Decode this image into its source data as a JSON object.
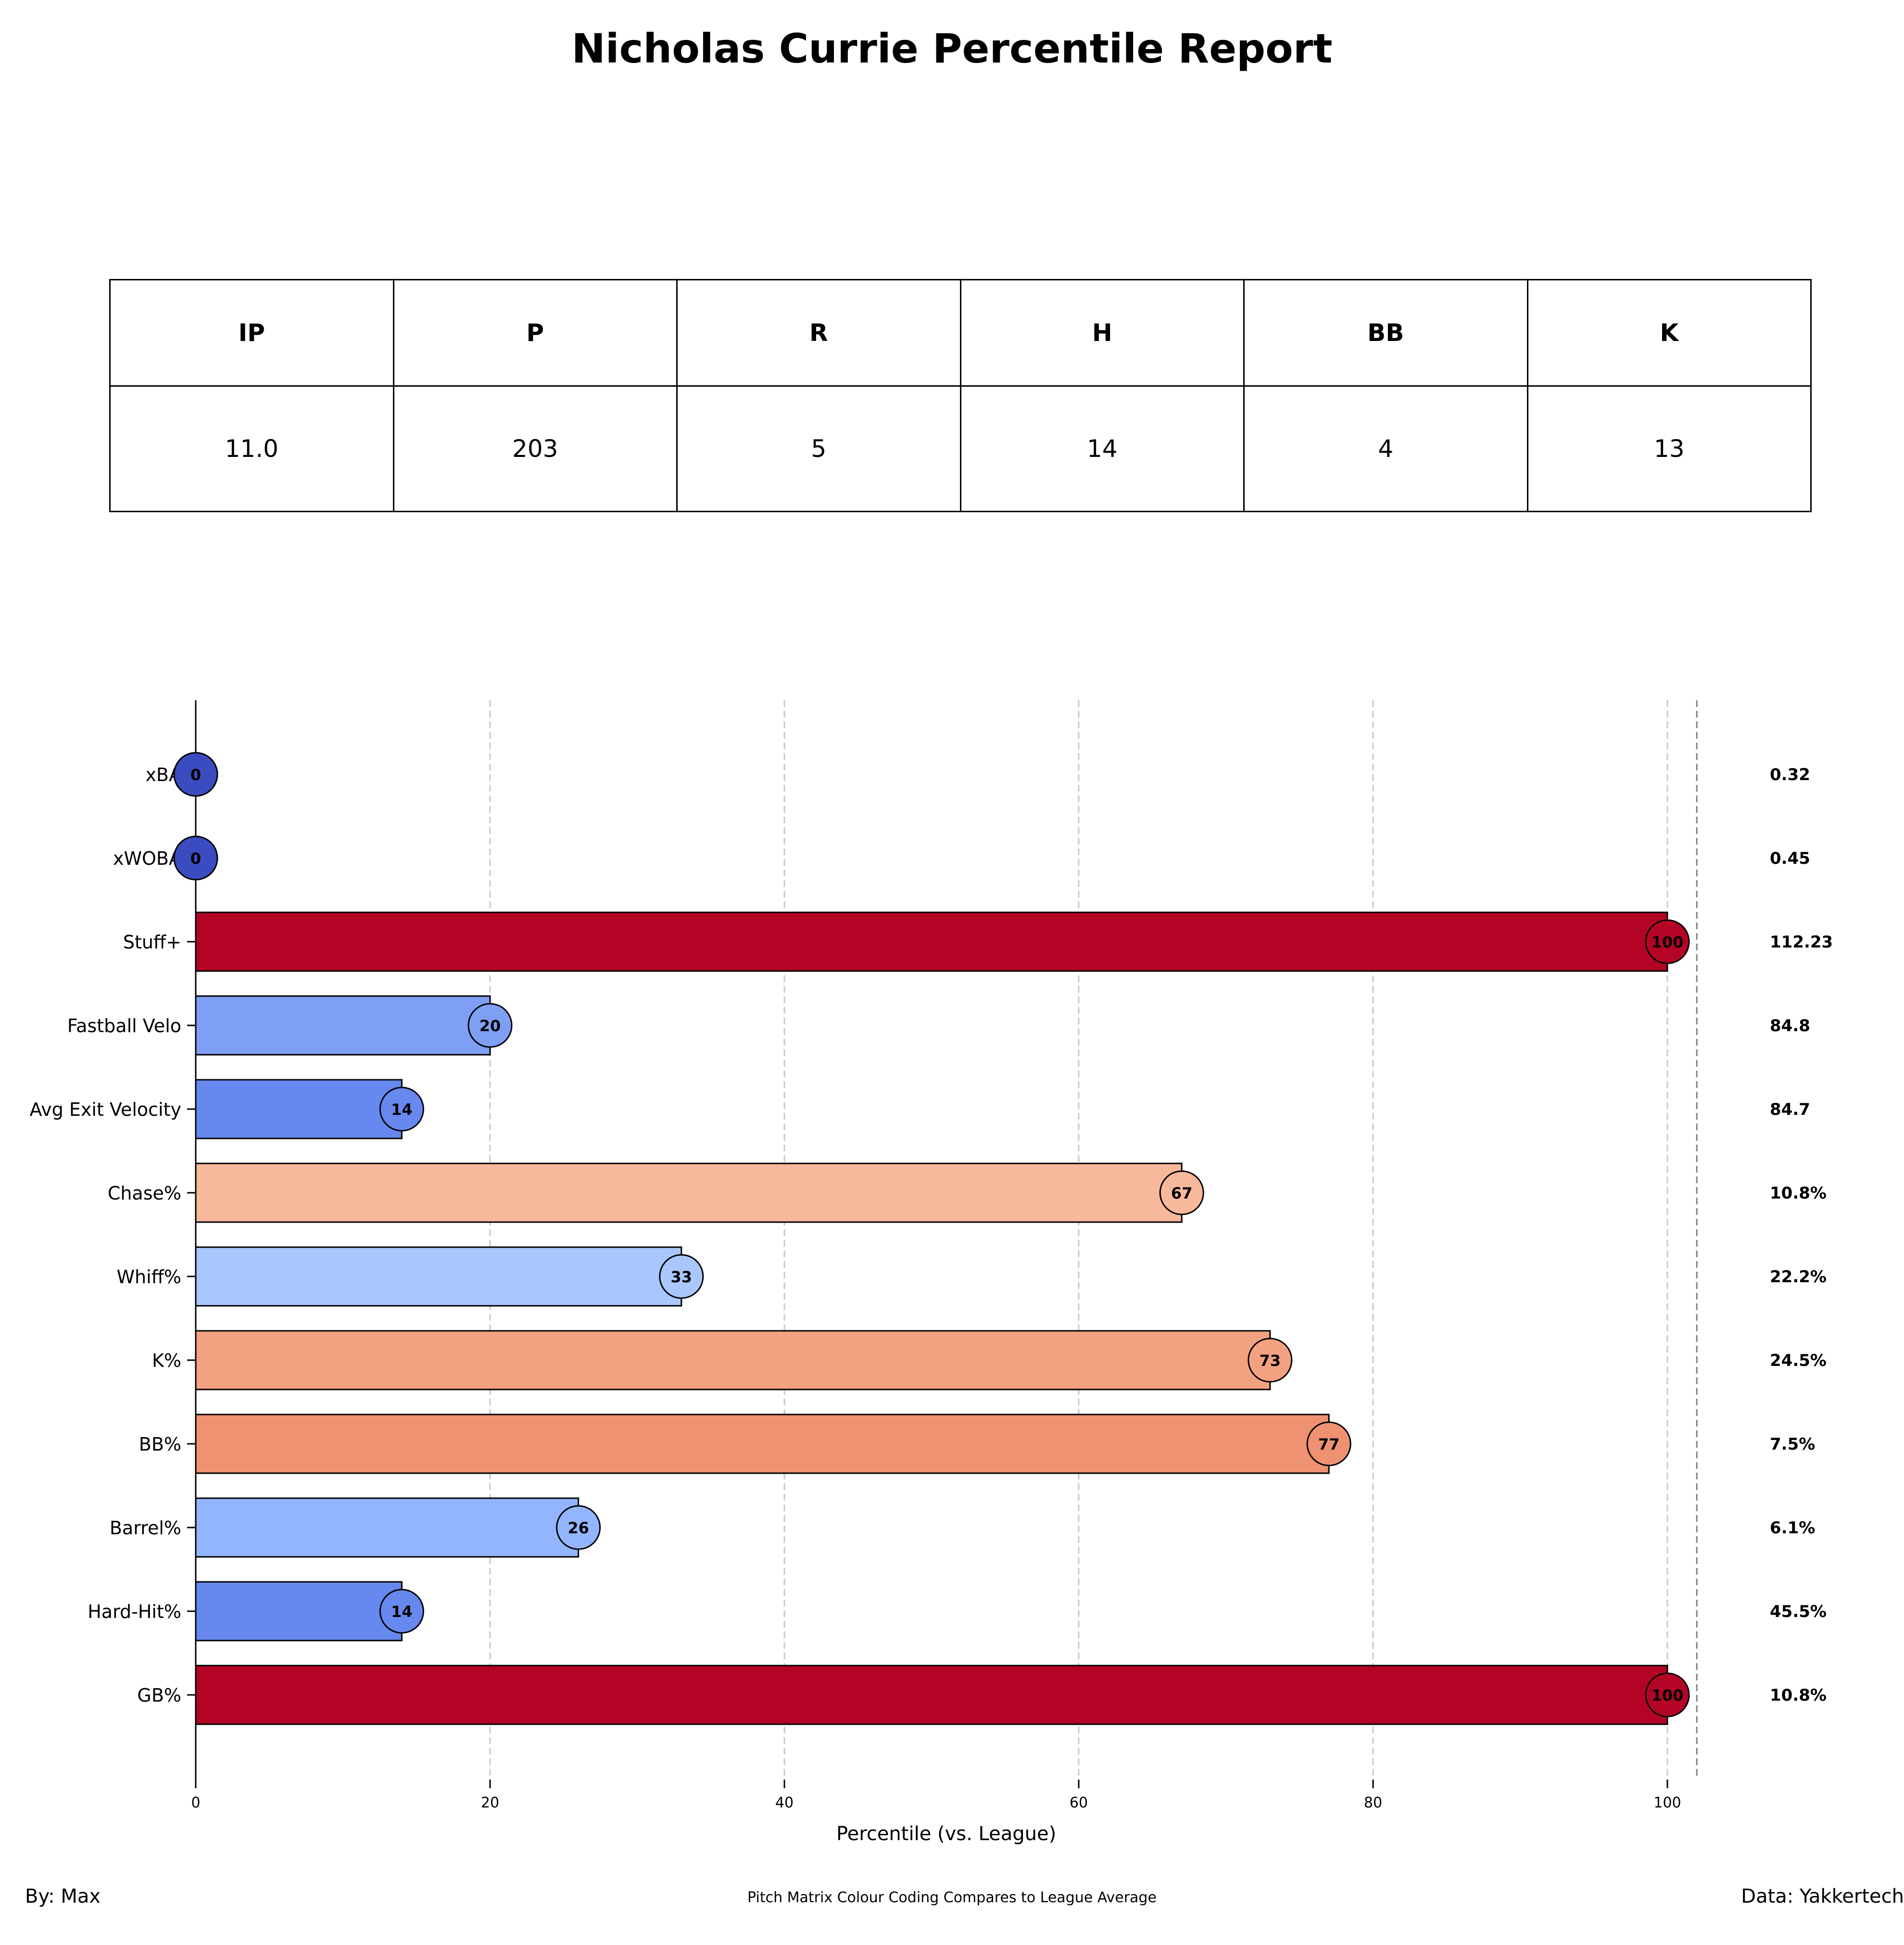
{
  "title": "Nicholas Currie Percentile Report",
  "stat_table": {
    "headers": [
      "IP",
      "P",
      "R",
      "H",
      "BB",
      "K"
    ],
    "values": [
      "11.0",
      "203",
      "5",
      "14",
      "4",
      "13"
    ]
  },
  "chart_data": {
    "type": "bar",
    "orientation": "horizontal",
    "categories": [
      "xBA",
      "xWOBA",
      "Stuff+",
      "Fastball Velo",
      "Avg Exit Velocity",
      "Chase%",
      "Whiff%",
      "K%",
      "BB%",
      "Barrel%",
      "Hard-Hit%",
      "GB%"
    ],
    "values": [
      0,
      0,
      100,
      20,
      14,
      67,
      33,
      73,
      77,
      26,
      14,
      100
    ],
    "raw_values": [
      "0.32",
      "0.45",
      "112.23",
      "84.8",
      "84.7",
      "10.8%",
      "22.2%",
      "24.5%",
      "7.5%",
      "6.1%",
      "45.5%",
      "10.8%"
    ],
    "colors": [
      "#3b4cc0",
      "#3b4cc0",
      "#b40426",
      "#7f9ff5",
      "#6788ee",
      "#f7b89c",
      "#aac7fd",
      "#f3a281",
      "#ef9272",
      "#93b5fe",
      "#6788ee",
      "#b40426"
    ],
    "xlabel": "Percentile (vs. League)",
    "ylabel": "",
    "xlim": [
      0,
      102
    ],
    "xticks": [
      0,
      20,
      40,
      60,
      80,
      100
    ],
    "grid": "vertical dashed",
    "reference_line": 102
  },
  "footer": {
    "left": "By: Max",
    "center": "Pitch Matrix Colour Coding Compares to League Average",
    "right": "Data: Yakkertech"
  }
}
